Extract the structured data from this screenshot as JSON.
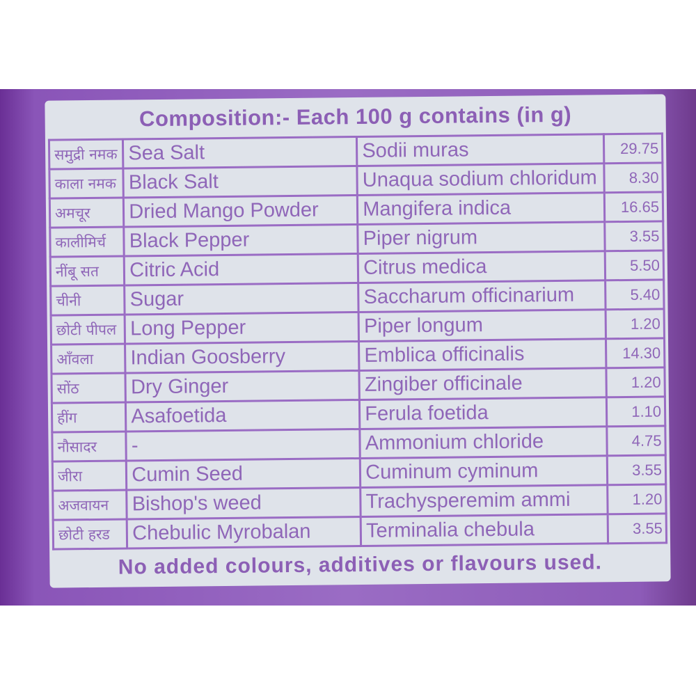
{
  "title": "Composition:- Each 100 g contains (in g)",
  "rows": [
    {
      "hindi": "समुद्री नमक",
      "english": "Sea Salt",
      "latin": "Sodii muras",
      "value": "29.75"
    },
    {
      "hindi": "काला नमक",
      "english": "Black Salt",
      "latin": "Unaqua sodium chloridum",
      "value": "8.30"
    },
    {
      "hindi": "अमचूर",
      "english": "Dried Mango Powder",
      "latin": "Mangifera indica",
      "value": "16.65"
    },
    {
      "hindi": "कालीमिर्च",
      "english": "Black Pepper",
      "latin": "Piper nigrum",
      "value": "3.55"
    },
    {
      "hindi": "नींबू सत",
      "english": "Citric Acid",
      "latin": "Citrus medica",
      "value": "5.50"
    },
    {
      "hindi": "चीनी",
      "english": "Sugar",
      "latin": "Saccharum officinarium",
      "value": "5.40"
    },
    {
      "hindi": "छोटी पीपल",
      "english": "Long Pepper",
      "latin": "Piper longum",
      "value": "1.20"
    },
    {
      "hindi": "आँवला",
      "english": "Indian Goosberry",
      "latin": "Emblica officinalis",
      "value": "14.30"
    },
    {
      "hindi": "सोंठ",
      "english": "Dry Ginger",
      "latin": "Zingiber officinale",
      "value": "1.20"
    },
    {
      "hindi": "हींग",
      "english": "Asafoetida",
      "latin": "Ferula foetida",
      "value": "1.10"
    },
    {
      "hindi": "नौसादर",
      "english": "-",
      "latin": "Ammonium chloride",
      "value": "4.75"
    },
    {
      "hindi": "जीरा",
      "english": "Cumin Seed",
      "latin": "Cuminum cyminum",
      "value": "3.55"
    },
    {
      "hindi": "अजवायन",
      "english": "Bishop's weed",
      "latin": "Trachysperemim ammi",
      "value": "1.20"
    },
    {
      "hindi": "छोटी हरड",
      "english": "Chebulic Myrobalan",
      "latin": "Terminalia chebula",
      "value": "3.55"
    }
  ],
  "footer": "No added colours, additives or flavours used.",
  "colors": {
    "band": "#8a55b8",
    "label": "#dfe3ea",
    "text": "#8f66b8"
  }
}
